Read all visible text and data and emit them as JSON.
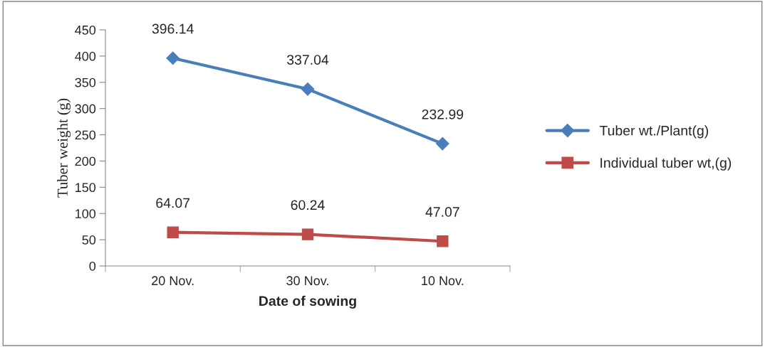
{
  "chart_data": {
    "type": "line",
    "xlabel": "Date of sowing",
    "ylabel": "Tuber weight (g)",
    "categories": [
      "20 Nov.",
      "30 Nov.",
      "10 Nov."
    ],
    "series": [
      {
        "name": "Tuber wt./Plant(g)",
        "color": "#4a7ebb",
        "marker": "diamond",
        "values": [
          396.14,
          337.04,
          232.99
        ]
      },
      {
        "name": "Individual tuber wt,(g)",
        "color": "#be4b48",
        "marker": "square",
        "values": [
          64.07,
          60.24,
          47.07
        ]
      }
    ],
    "ylim": [
      0,
      450
    ],
    "yticks": [
      0,
      50,
      100,
      150,
      200,
      250,
      300,
      350,
      400,
      450
    ],
    "data_labels": true,
    "grid": false,
    "legend": "right"
  }
}
